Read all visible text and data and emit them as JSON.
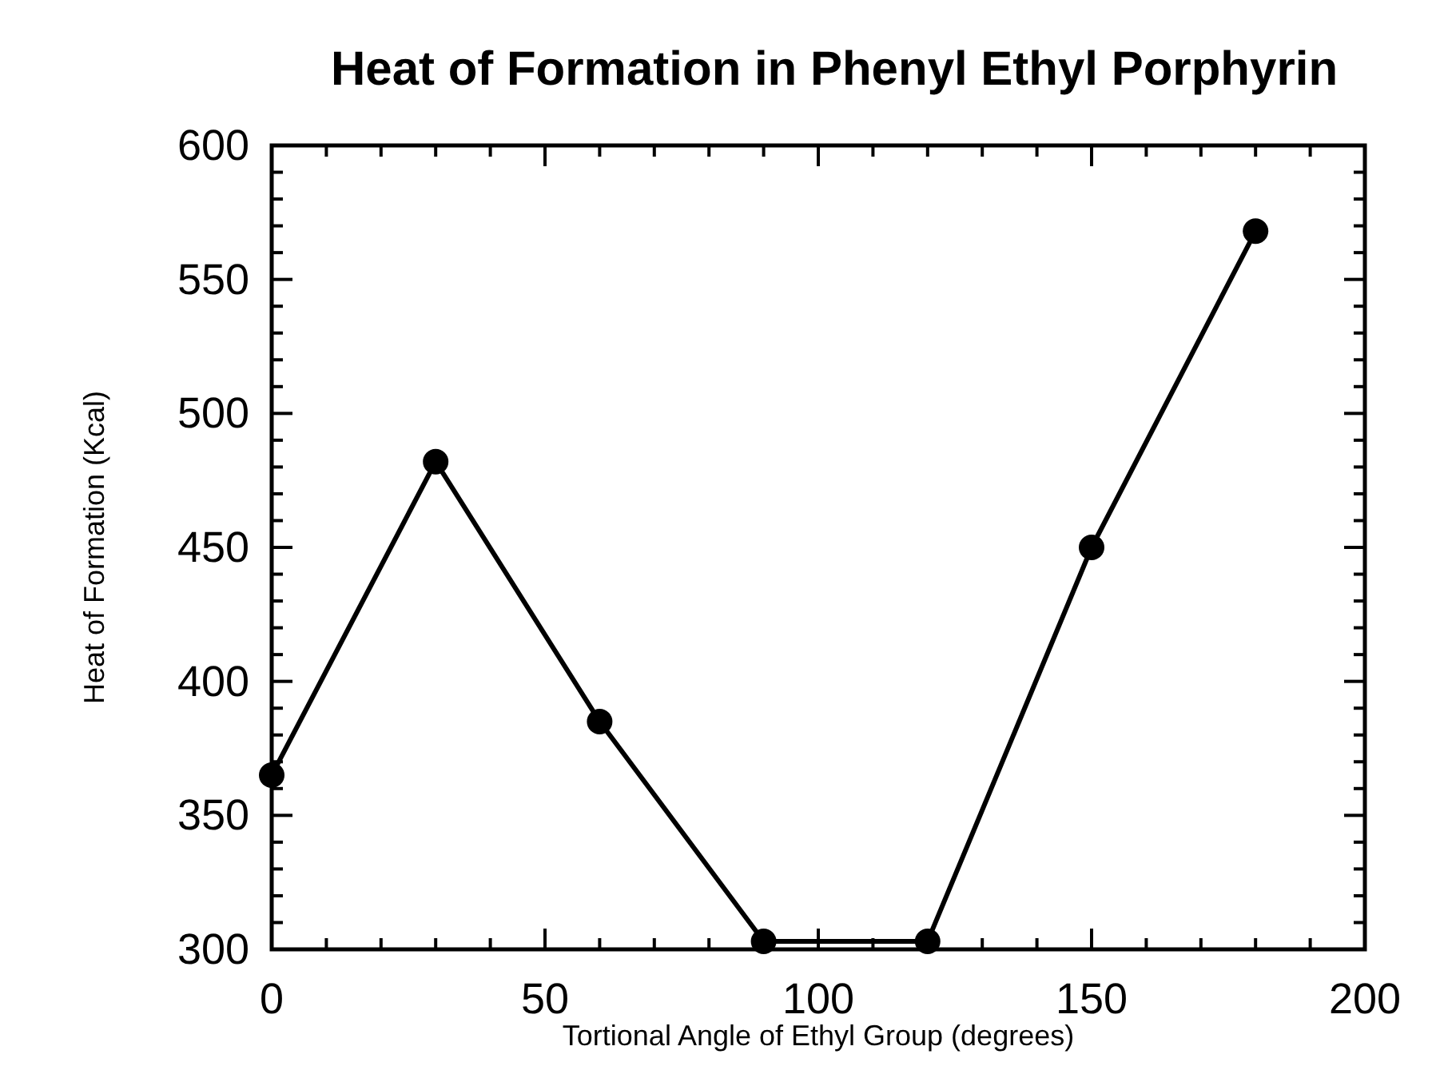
{
  "chart_data": {
    "type": "line",
    "title": "Heat of Formation in Phenyl Ethyl Porphyrin",
    "xlabel": "Tortional Angle of Ethyl Group (degrees)",
    "ylabel": "Heat of Formation (Kcal)",
    "x": [
      0,
      30,
      60,
      90,
      120,
      150,
      180
    ],
    "series": [
      {
        "color": "#000000",
        "values": [
          365,
          482,
          385,
          303,
          303,
          450,
          568
        ]
      }
    ],
    "marker": "circle",
    "line_style": "solid",
    "grid": false,
    "xlim": [
      0,
      200
    ],
    "ylim": [
      300,
      600
    ],
    "xticks": [
      0,
      {
        "value": 10,
        "label": null
      },
      {
        "value": 20,
        "label": null
      },
      {
        "value": 30,
        "label": null
      },
      {
        "value": 40,
        "label": null
      },
      50,
      {
        "value": 60,
        "label": null
      },
      {
        "value": 70,
        "label": null
      },
      {
        "value": 80,
        "label": null
      },
      {
        "value": 90,
        "label": null
      },
      100,
      {
        "value": 110,
        "label": null
      },
      {
        "value": 120,
        "label": null
      },
      {
        "value": 130,
        "label": null
      },
      {
        "value": 140,
        "label": null
      },
      150,
      {
        "value": 160,
        "label": null
      },
      {
        "value": 170,
        "label": null
      },
      {
        "value": 180,
        "label": null
      },
      {
        "value": 190,
        "label": null
      },
      200
    ],
    "yticks": [
      300,
      {
        "value": 310,
        "label": null
      },
      {
        "value": 320,
        "label": null
      },
      {
        "value": 330,
        "label": null
      },
      {
        "value": 340,
        "label": null
      },
      350,
      {
        "value": 360,
        "label": null
      },
      {
        "value": 370,
        "label": null
      },
      {
        "value": 380,
        "label": null
      },
      {
        "value": 390,
        "label": null
      },
      400,
      {
        "value": 410,
        "label": null
      },
      {
        "value": 420,
        "label": null
      },
      {
        "value": 430,
        "label": null
      },
      {
        "value": 440,
        "label": null
      },
      450,
      {
        "value": 460,
        "label": null
      },
      {
        "value": 470,
        "label": null
      },
      {
        "value": 480,
        "label": null
      },
      {
        "value": 490,
        "label": null
      },
      500,
      {
        "value": 510,
        "label": null
      },
      {
        "value": 520,
        "label": null
      },
      {
        "value": 530,
        "label": null
      },
      {
        "value": 540,
        "label": null
      },
      550,
      {
        "value": 560,
        "label": null
      },
      {
        "value": 570,
        "label": null
      },
      {
        "value": 580,
        "label": null
      },
      {
        "value": 590,
        "label": null
      },
      600
    ]
  }
}
